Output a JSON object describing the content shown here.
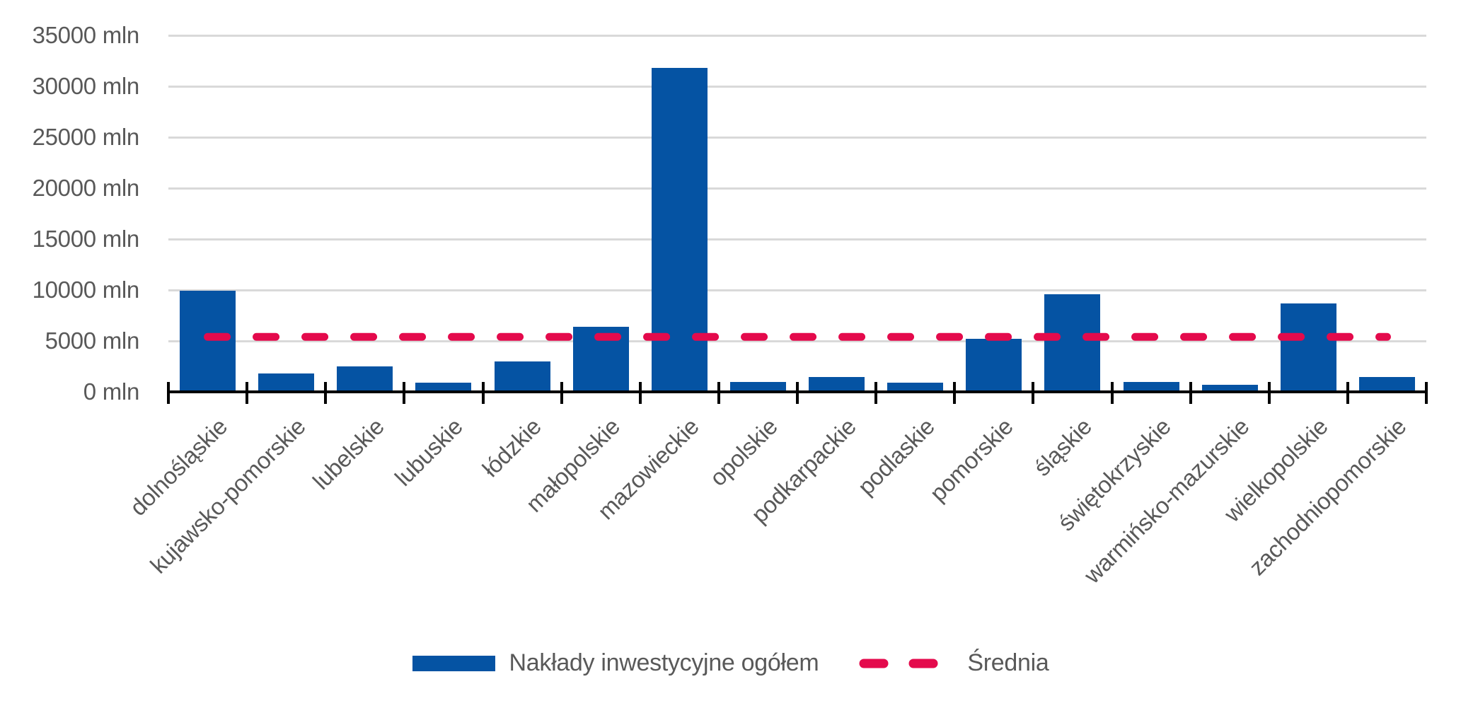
{
  "chart_data": {
    "type": "bar",
    "title": "",
    "categories": [
      "dolnośląskie",
      "kujawsko-pomorskie",
      "lubelskie",
      "lubuskie",
      "łódzkie",
      "małopolskie",
      "mazowieckie",
      "opolskie",
      "podkarpackie",
      "podlaskie",
      "pomorskie",
      "śląskie",
      "świętokrzyskie",
      "warmińsko-mazurskie",
      "wielkopolskie",
      "zachodniopomorskie"
    ],
    "series": [
      {
        "name": "Nakłady inwestycyjne ogółem",
        "type": "bar",
        "color": "#0553A3",
        "values": [
          9900,
          1800,
          2500,
          900,
          3000,
          6400,
          31800,
          1000,
          1450,
          900,
          5200,
          9600,
          1000,
          700,
          8700,
          1450
        ]
      }
    ],
    "average_line": {
      "name": "Średnia",
      "value": 5400,
      "color": "#E40A4C",
      "style": "dashed"
    },
    "y_axis": {
      "unit": "mln",
      "min": 0,
      "max": 35000,
      "step": 5000,
      "tick_labels": [
        "0 mln",
        "5000 mln",
        "10000 mln",
        "15000 mln",
        "20000 mln",
        "25000 mln",
        "30000 mln",
        "35000 mln"
      ]
    },
    "x_axis": {
      "label_rotation_deg": -45
    },
    "grid": true,
    "legend_position": "bottom"
  },
  "legend": {
    "items": [
      {
        "label": "Nakłady inwestycyjne ogółem",
        "swatch": "bar",
        "color": "#0553A3"
      },
      {
        "label": "Średnia",
        "swatch": "dashed-line",
        "color": "#E40A4C"
      }
    ]
  },
  "colors": {
    "bar": "#0553A3",
    "average": "#E40A4C",
    "grid": "#D9D9D9",
    "axis": "#000000",
    "text": "#595959",
    "background": "#FFFFFF"
  }
}
